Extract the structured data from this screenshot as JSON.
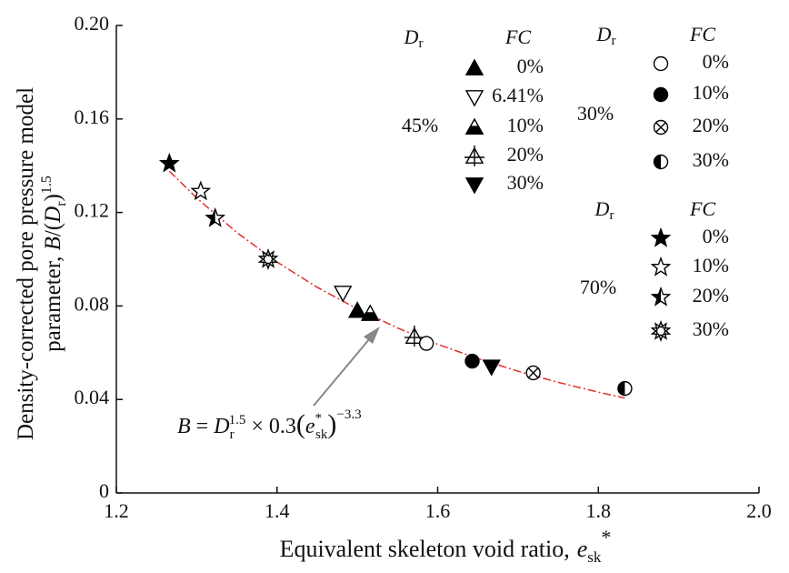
{
  "chart_data": {
    "type": "scatter",
    "marker_color": "#000000",
    "x_label": {
      "text": "Equivalent skeleton void ratio,",
      "symbol": "e",
      "sub": "sk",
      "sup": "*"
    },
    "y_label": {
      "line1": "Density-corrected pore pressure model",
      "line2": "parameter, ",
      "B": "B",
      "mid": "/(",
      "D": "D",
      "sub": "r",
      "close": ")",
      "sup": "1.5"
    },
    "xlim": [
      1.2,
      2.0
    ],
    "xticks": [
      1.2,
      1.4,
      1.6,
      1.8,
      {
        "value": 2,
        "label": "2.0"
      }
    ],
    "ylim": [
      0,
      0.2
    ],
    "yticks": [
      0,
      0.04,
      0.08,
      0.12,
      0.16,
      {
        "value": 0.2,
        "label": "0.20"
      }
    ],
    "groups": [
      {
        "dr_symbol": "D",
        "dr_sub": "r",
        "fc_header": "FC",
        "name": "45%",
        "series": [
          {
            "name": "0%",
            "marker": "tri-up-filled",
            "x": [
              1.5
            ],
            "values": [
              0.078
            ]
          },
          {
            "name": "6.41%",
            "marker": "tri-down-open",
            "x": [
              1.482
            ],
            "values": [
              0.0856
            ]
          },
          {
            "name": "10%",
            "marker": "tri-up-half",
            "x": [
              1.516
            ],
            "values": [
              0.0767
            ]
          },
          {
            "name": "20%",
            "marker": "tri-up-plus",
            "x": [
              1.571
            ],
            "values": [
              0.0669
            ]
          },
          {
            "name": "30%",
            "marker": "tri-down-filled",
            "x": [
              1.667
            ],
            "values": [
              0.054
            ]
          }
        ]
      },
      {
        "dr_symbol": "D",
        "dr_sub": "r",
        "fc_header": "FC",
        "name": "30%",
        "series": [
          {
            "name": "0%",
            "marker": "circle-open",
            "x": [
              1.586
            ],
            "values": [
              0.064
            ]
          },
          {
            "name": "10%",
            "marker": "circle-filled",
            "x": [
              1.643
            ],
            "values": [
              0.0564
            ]
          },
          {
            "name": "20%",
            "marker": "circle-x",
            "x": [
              1.719
            ],
            "values": [
              0.0514
            ]
          },
          {
            "name": "30%",
            "marker": "circle-half",
            "x": [
              1.833
            ],
            "values": [
              0.0447
            ]
          }
        ]
      },
      {
        "dr_symbol": "D",
        "dr_sub": "r",
        "fc_header": "FC",
        "name": "70%",
        "series": [
          {
            "name": "0%",
            "marker": "star-filled",
            "x": [
              1.266
            ],
            "values": [
              0.1409
            ]
          },
          {
            "name": "10%",
            "marker": "star-open",
            "x": [
              1.305
            ],
            "values": [
              0.129
            ]
          },
          {
            "name": "20%",
            "marker": "star-half",
            "x": [
              1.323
            ],
            "values": [
              0.1175
            ]
          },
          {
            "name": "30%",
            "marker": "star-double",
            "x": [
              1.389
            ],
            "values": [
              0.1
            ]
          }
        ]
      }
    ],
    "fit": {
      "type": "line",
      "color": "#e0302a",
      "x": [
        1.266,
        1.3,
        1.35,
        1.4,
        1.45,
        1.5,
        1.55,
        1.6,
        1.65,
        1.7,
        1.75,
        1.8,
        1.833
      ],
      "values": [
        0.1377,
        0.1262,
        0.1114,
        0.0988,
        0.088,
        0.0787,
        0.0706,
        0.0636,
        0.0575,
        0.0521,
        0.0473,
        0.0431,
        0.0406
      ]
    },
    "equation": {
      "B": "B",
      "eq": " = ",
      "D": "D",
      "D_sub": "r",
      "D_sup": "1.5",
      "times": " × 0.3",
      "lparen": "(",
      "e": "e",
      "e_sup": "*",
      "e_sub": "sk",
      "rparen": ")",
      "exp": "−3.3"
    }
  }
}
